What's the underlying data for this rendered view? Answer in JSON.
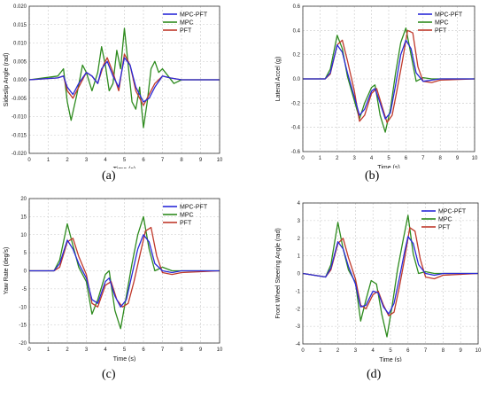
{
  "captions": [
    "(a)",
    "(b)",
    "(c)",
    "(d)"
  ],
  "colors": {
    "MPC-PFT": "#2a2ad8",
    "MPC": "#2e8b1e",
    "PFT": "#c0392b"
  },
  "chart_data": [
    {
      "type": "line",
      "caption": "(a)",
      "xlabel": "Time (s)",
      "ylabel": "Sideslip Angle (rad)",
      "xlim": [
        0,
        10
      ],
      "ylim": [
        -0.02,
        0.02
      ],
      "xticks": [
        "0",
        "1",
        "2",
        "3",
        "4",
        "5",
        "6",
        "7",
        "8",
        "9",
        "10"
      ],
      "yticks": [
        "0.020",
        "0.015",
        "0.010",
        "0.005",
        "0.000",
        "-0.005",
        "-0.010",
        "-0.015",
        "-0.020"
      ],
      "grid": true,
      "legend_position": "top-right",
      "series": [
        {
          "name": "MPC-PFT",
          "x": [
            0,
            1.5,
            1.8,
            2.0,
            2.3,
            2.6,
            3.0,
            3.3,
            3.6,
            3.8,
            4.1,
            4.4,
            4.7,
            5.0,
            5.3,
            5.6,
            6.0,
            6.3,
            6.6,
            7.0,
            7.4,
            8,
            10
          ],
          "y": [
            0,
            0.0005,
            0.001,
            -0.002,
            -0.004,
            -0.001,
            0.002,
            0.001,
            -0.001,
            0.003,
            0.005,
            0.001,
            -0.002,
            0.006,
            0.004,
            -0.002,
            -0.006,
            -0.005,
            -0.002,
            0.001,
            0.0005,
            0,
            0
          ]
        },
        {
          "name": "MPC",
          "x": [
            0,
            1.5,
            1.8,
            2.0,
            2.2,
            2.5,
            2.8,
            3.0,
            3.3,
            3.6,
            3.8,
            4.0,
            4.2,
            4.4,
            4.6,
            4.8,
            5.0,
            5.2,
            5.4,
            5.6,
            5.8,
            6.0,
            6.2,
            6.4,
            6.6,
            6.8,
            7.0,
            7.3,
            7.6,
            8,
            10
          ],
          "y": [
            0,
            0.001,
            0.003,
            -0.006,
            -0.011,
            -0.004,
            0.004,
            0.002,
            -0.003,
            0.002,
            0.009,
            0.004,
            -0.003,
            -0.001,
            0.008,
            0.003,
            0.014,
            0.004,
            -0.006,
            -0.008,
            -0.002,
            -0.013,
            -0.006,
            0.003,
            0.005,
            0.002,
            0.003,
            0.001,
            -0.001,
            0,
            0
          ]
        },
        {
          "name": "PFT",
          "x": [
            0,
            1.5,
            1.8,
            2.0,
            2.3,
            2.6,
            3.0,
            3.3,
            3.6,
            3.9,
            4.1,
            4.4,
            4.7,
            5.0,
            5.3,
            5.6,
            6.0,
            6.3,
            6.6,
            7.0,
            7.4,
            8,
            10
          ],
          "y": [
            0,
            0.0005,
            0.001,
            -0.003,
            -0.005,
            -0.002,
            0.002,
            0.001,
            -0.001,
            0.004,
            0.006,
            0.002,
            -0.003,
            0.007,
            0.004,
            -0.003,
            -0.007,
            -0.004,
            -0.001,
            0.001,
            0.0005,
            0,
            0
          ]
        }
      ]
    },
    {
      "type": "line",
      "caption": "(b)",
      "xlabel": "Time (s)",
      "ylabel": "Lateral Accel (g)",
      "xlim": [
        0,
        10
      ],
      "ylim": [
        -0.6,
        0.6
      ],
      "xticks": [
        "0",
        "1",
        "2",
        "3",
        "4",
        "5",
        "6",
        "7",
        "8",
        "9",
        "10"
      ],
      "yticks": [
        "0.6",
        "0.4",
        "0.2",
        "0.0",
        "-0.2",
        "-0.4",
        "-0.6"
      ],
      "grid": true,
      "legend_position": "top-right",
      "series": [
        {
          "name": "MPC-PFT",
          "x": [
            0,
            1.3,
            1.6,
            2.0,
            2.3,
            2.6,
            3.0,
            3.3,
            3.6,
            4.0,
            4.2,
            4.5,
            4.8,
            5.1,
            5.4,
            5.7,
            6.0,
            6.3,
            6.6,
            7.0,
            7.5,
            8,
            10
          ],
          "y": [
            0,
            0,
            0.05,
            0.28,
            0.22,
            0.05,
            -0.15,
            -0.3,
            -0.25,
            -0.1,
            -0.08,
            -0.2,
            -0.33,
            -0.28,
            -0.05,
            0.2,
            0.32,
            0.25,
            0.05,
            -0.02,
            -0.01,
            0,
            0
          ]
        },
        {
          "name": "MPC",
          "x": [
            0,
            1.3,
            1.6,
            2.0,
            2.3,
            2.6,
            3.0,
            3.3,
            3.6,
            4.0,
            4.2,
            4.5,
            4.8,
            5.1,
            5.4,
            5.7,
            6.0,
            6.3,
            6.6,
            7.0,
            7.5,
            8,
            10
          ],
          "y": [
            0,
            0,
            0.08,
            0.36,
            0.25,
            0.02,
            -0.18,
            -0.33,
            -0.2,
            -0.07,
            -0.05,
            -0.3,
            -0.44,
            -0.25,
            0.05,
            0.3,
            0.42,
            0.2,
            -0.02,
            0.01,
            0,
            0,
            0
          ]
        },
        {
          "name": "PFT",
          "x": [
            0,
            1.3,
            1.6,
            2.0,
            2.3,
            2.6,
            3.0,
            3.3,
            3.6,
            4.0,
            4.3,
            4.6,
            4.9,
            5.2,
            5.5,
            5.8,
            6.1,
            6.4,
            6.7,
            7.0,
            7.5,
            8,
            10
          ],
          "y": [
            0,
            0,
            0.04,
            0.28,
            0.32,
            0.15,
            -0.1,
            -0.35,
            -0.3,
            -0.12,
            -0.08,
            -0.22,
            -0.36,
            -0.3,
            -0.08,
            0.15,
            0.4,
            0.38,
            0.1,
            -0.02,
            -0.03,
            -0.01,
            0
          ]
        }
      ]
    },
    {
      "type": "line",
      "caption": "(c)",
      "xlabel": "Time (s)",
      "ylabel": "Yaw Rate (deg/s)",
      "xlim": [
        0,
        10
      ],
      "ylim": [
        -20,
        20
      ],
      "xticks": [
        "0",
        "1",
        "2",
        "3",
        "4",
        "5",
        "6",
        "7",
        "8",
        "9",
        "10"
      ],
      "yticks": [
        "20",
        "15",
        "10",
        "5",
        "0",
        "-5",
        "-10",
        "-15",
        "-20"
      ],
      "grid": true,
      "legend_position": "top-right",
      "series": [
        {
          "name": "MPC-PFT",
          "x": [
            0,
            1.3,
            1.6,
            2.0,
            2.3,
            2.6,
            3.0,
            3.3,
            3.6,
            4.0,
            4.2,
            4.5,
            4.8,
            5.1,
            5.4,
            5.7,
            6.0,
            6.3,
            6.6,
            7.0,
            7.5,
            8,
            10
          ],
          "y": [
            0,
            0,
            2,
            8.5,
            6,
            2,
            -2,
            -8,
            -9,
            -3,
            -2,
            -7,
            -10,
            -8,
            -1,
            6,
            10,
            8,
            2,
            0,
            -0.5,
            0,
            0
          ]
        },
        {
          "name": "MPC",
          "x": [
            0,
            1.3,
            1.6,
            2.0,
            2.3,
            2.6,
            3.0,
            3.3,
            3.6,
            4.0,
            4.2,
            4.5,
            4.8,
            5.1,
            5.4,
            5.7,
            6.0,
            6.3,
            6.6,
            7.0,
            7.5,
            8,
            10
          ],
          "y": [
            0,
            0,
            3,
            13,
            7,
            1,
            -3,
            -12,
            -8,
            -1,
            0,
            -11,
            -16,
            -7,
            2,
            10,
            15,
            6,
            0,
            1,
            0,
            0,
            0
          ]
        },
        {
          "name": "PFT",
          "x": [
            0,
            1.3,
            1.6,
            2.0,
            2.3,
            2.6,
            3.0,
            3.3,
            3.6,
            4.0,
            4.3,
            4.6,
            4.9,
            5.2,
            5.5,
            5.8,
            6.1,
            6.4,
            6.7,
            7.0,
            7.5,
            8,
            10
          ],
          "y": [
            0,
            0,
            1,
            8,
            9,
            4,
            -1,
            -9,
            -10,
            -4,
            -3,
            -8,
            -10,
            -9,
            -3,
            4,
            11,
            12,
            4,
            -0.5,
            -1,
            -0.5,
            0
          ]
        }
      ]
    },
    {
      "type": "line",
      "caption": "(d)",
      "xlabel": "Time (s)",
      "ylabel": "Front Wheel Steering Angle (rad)",
      "xlim": [
        0,
        10
      ],
      "ylim": [
        -4,
        4
      ],
      "xticks": [
        "0",
        "1",
        "2",
        "3",
        "4",
        "5",
        "6",
        "7",
        "8",
        "9",
        "10"
      ],
      "yticks": [
        "4",
        "3",
        "2",
        "1",
        "0",
        "-1",
        "-2",
        "-3",
        "-4"
      ],
      "grid": true,
      "legend_position": "top-right",
      "series": [
        {
          "name": "MPC-PFT",
          "x": [
            0,
            1.3,
            1.6,
            2.0,
            2.3,
            2.6,
            3.0,
            3.3,
            3.6,
            4.0,
            4.3,
            4.6,
            4.9,
            5.2,
            5.5,
            5.8,
            6.0,
            6.3,
            6.6,
            7.0,
            7.5,
            8,
            10
          ],
          "y": [
            0,
            -0.2,
            0.3,
            1.8,
            1.4,
            0.4,
            -0.6,
            -1.9,
            -1.8,
            -1.0,
            -1.1,
            -1.9,
            -2.3,
            -1.7,
            -0.3,
            1.2,
            2.1,
            1.7,
            0.5,
            0,
            -0.1,
            0,
            0
          ]
        },
        {
          "name": "MPC",
          "x": [
            0,
            1.3,
            1.6,
            2.0,
            2.3,
            2.6,
            3.0,
            3.3,
            3.6,
            3.9,
            4.2,
            4.5,
            4.8,
            5.1,
            5.4,
            5.7,
            6.0,
            6.3,
            6.6,
            7.0,
            7.5,
            8,
            10
          ],
          "y": [
            0,
            -0.2,
            0.5,
            2.9,
            1.4,
            0.2,
            -0.5,
            -2.7,
            -1.5,
            -0.4,
            -0.6,
            -2.3,
            -3.6,
            -1.8,
            0.2,
            1.8,
            3.3,
            1.1,
            0,
            0.1,
            0,
            0,
            0
          ]
        },
        {
          "name": "PFT",
          "x": [
            0,
            1.3,
            1.6,
            2.0,
            2.3,
            2.6,
            3.0,
            3.3,
            3.6,
            4.0,
            4.3,
            4.6,
            4.9,
            5.2,
            5.5,
            5.8,
            6.1,
            6.4,
            6.7,
            7.0,
            7.5,
            8,
            10
          ],
          "y": [
            0,
            -0.2,
            0.2,
            1.7,
            2.0,
            0.9,
            -0.3,
            -1.8,
            -2.0,
            -1.2,
            -1.0,
            -1.8,
            -2.4,
            -2.2,
            -0.8,
            0.8,
            2.6,
            2.4,
            0.8,
            -0.2,
            -0.3,
            -0.1,
            0
          ]
        }
      ]
    }
  ]
}
